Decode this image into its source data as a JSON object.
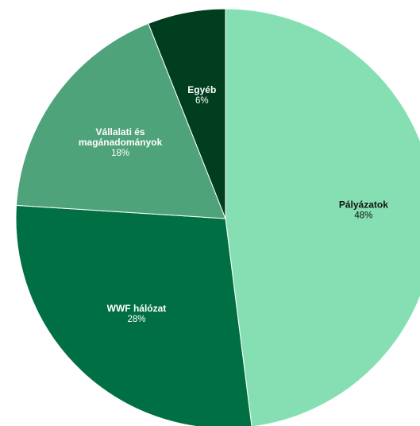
{
  "chart_data": {
    "type": "pie",
    "title": "",
    "start_angle_deg": 0,
    "direction": "clockwise",
    "slices": [
      {
        "label": "Pályázatok",
        "value": 48,
        "value_label": "48%",
        "color": "#85dfb3",
        "text_color": "#111111",
        "label_lines": [
          "Pályázatok"
        ]
      },
      {
        "label": "WWF hálózat",
        "value": 28,
        "value_label": "28%",
        "color": "#006f43",
        "text_color": "#ffffff",
        "label_lines": [
          "WWF hálózat"
        ]
      },
      {
        "label": "Vállalati és magánadományok",
        "value": 18,
        "value_label": "18%",
        "color": "#4fa37a",
        "text_color": "#ffffff",
        "label_lines": [
          "Vállalati és",
          "magánadományok"
        ]
      },
      {
        "label": "Egyéb",
        "value": 6,
        "value_label": "6%",
        "color": "#003e1f",
        "text_color": "#ffffff",
        "label_lines": [
          "Egyéb"
        ]
      }
    ],
    "border_color": "#ffffff"
  }
}
